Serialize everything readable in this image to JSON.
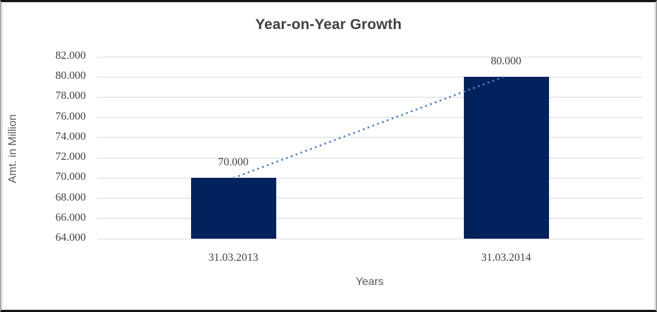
{
  "chart_data": {
    "type": "bar",
    "title": "Year-on-Year Growth",
    "xlabel": "Years",
    "ylabel": "Amt. in Million",
    "categories": [
      "31.03.2013",
      "31.03.2014"
    ],
    "values": [
      70000,
      80000
    ],
    "data_labels": [
      "70.000",
      "80.000"
    ],
    "ylim": [
      64000,
      82000
    ],
    "ytick_step": 2000,
    "ytick_labels": [
      "64.000",
      "66.000",
      "68.000",
      "70.000",
      "72.000",
      "74.000",
      "76.000",
      "78.000",
      "80.000",
      "82.000"
    ],
    "grid": true,
    "legend": "none",
    "trendline": {
      "type": "linear",
      "style": "dotted",
      "from_label": "70.000",
      "to_label": "80.000"
    },
    "colors": {
      "bar": "#02225e",
      "trendline": "#4e81bd",
      "gridline": "#d9d9d9",
      "title": "#404040",
      "tick_label": "#3f3f3f",
      "axis_title": "#595959"
    }
  }
}
